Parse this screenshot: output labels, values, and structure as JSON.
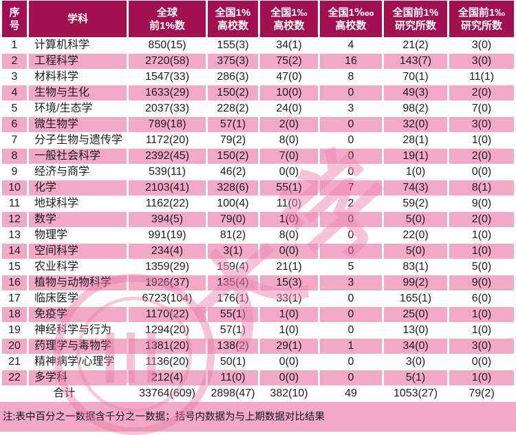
{
  "colors": {
    "header_bg": "#A21050",
    "header_text": "#FFFFFF",
    "row_pink": "#F2A9C6",
    "row_white": "#FFFFFF",
    "note_bg": "#F2A9C6",
    "body_text": "#1C1C1C",
    "watermark_pink": "#EB8AB2"
  },
  "header": {
    "columns": [
      {
        "id": "no",
        "lines": [
          "序",
          "号"
        ]
      },
      {
        "id": "subject",
        "lines": [
          "学科",
          ""
        ]
      },
      {
        "id": "global",
        "lines": [
          "全球",
          "前1%数"
        ]
      },
      {
        "id": "uni_1pct",
        "lines": [
          "全国1%",
          "高校数"
        ]
      },
      {
        "id": "uni_1pm",
        "lines": [
          "全国1‰",
          "高校数"
        ]
      },
      {
        "id": "uni_1ptm",
        "lines": [
          "全国1‱",
          "高校数"
        ]
      },
      {
        "id": "inst_1pct",
        "lines": [
          "全国前1%",
          "研究所数"
        ]
      },
      {
        "id": "inst_1pm",
        "lines": [
          "全国前1‰",
          "研究所数"
        ]
      }
    ]
  },
  "rows": [
    {
      "no": "1",
      "subject": "计算机科学",
      "values": [
        "850(15)",
        "155(3)",
        "34(1)",
        "4",
        "21(2)",
        "3(0)"
      ]
    },
    {
      "no": "2",
      "subject": "工程科学",
      "values": [
        "2720(58)",
        "375(3)",
        "75(2)",
        "16",
        "143(7)",
        "3(0)"
      ]
    },
    {
      "no": "3",
      "subject": "材料科学",
      "values": [
        "1547(33)",
        "286(3)",
        "47(0)",
        "8",
        "70(1)",
        "11(1)"
      ]
    },
    {
      "no": "4",
      "subject": "生物与生化",
      "values": [
        "1633(29)",
        "150(2)",
        "10(0)",
        "0",
        "49(3)",
        "2(0)"
      ]
    },
    {
      "no": "5",
      "subject": "环境/生态学",
      "values": [
        "2037(33)",
        "228(2)",
        "24(0)",
        "3",
        "98(2)",
        "7(0)"
      ]
    },
    {
      "no": "6",
      "subject": "微生物学",
      "values": [
        "789(18)",
        "57(1)",
        "2(0)",
        "0",
        "32(0)",
        "3(0)"
      ]
    },
    {
      "no": "7",
      "subject": "分子生物与遗传学",
      "values": [
        "1172(20)",
        "79(2)",
        "8(0)",
        "0",
        "28(1)",
        "1(0)"
      ]
    },
    {
      "no": "8",
      "subject": "一般社会科学",
      "values": [
        "2392(45)",
        "150(2)",
        "7(0)",
        "0",
        "19(1)",
        "2(0)"
      ]
    },
    {
      "no": "9",
      "subject": "经济与商学",
      "values": [
        "539(11)",
        "46(2)",
        "0(0)",
        "0",
        "1(0)",
        "0(0)"
      ]
    },
    {
      "no": "10",
      "subject": "化学",
      "values": [
        "2103(41)",
        "328(6)",
        "55(1)",
        "7",
        "74(3)",
        "8(1)"
      ]
    },
    {
      "no": "11",
      "subject": "地球科学",
      "values": [
        "1162(22)",
        "100(4)",
        "11(0)",
        "2",
        "59(2)",
        "9(0)"
      ]
    },
    {
      "no": "12",
      "subject": "数学",
      "values": [
        "394(5)",
        "79(0)",
        "1(0)",
        "0",
        "5(0)",
        "2(0)"
      ]
    },
    {
      "no": "13",
      "subject": "物理学",
      "values": [
        "991(19)",
        "81(2)",
        "8(0)",
        "0",
        "22(0)",
        "1(0)"
      ]
    },
    {
      "no": "14",
      "subject": "空间科学",
      "values": [
        "234(4)",
        "3(1)",
        "0(0)",
        "0",
        "5(0)",
        "1(0)"
      ]
    },
    {
      "no": "15",
      "subject": "农业科学",
      "values": [
        "1359(29)",
        "159(4)",
        "21(1)",
        "5",
        "83(1)",
        "5(0)"
      ]
    },
    {
      "no": "16",
      "subject": "植物与动物科学",
      "values": [
        "1926(37)",
        "135(4)",
        "15(3)",
        "3",
        "99(2)",
        "9(0)"
      ]
    },
    {
      "no": "17",
      "subject": "临床医学",
      "values": [
        "6723(104)",
        "176(1)",
        "33(1)",
        "0",
        "165(1)",
        "6(0)"
      ]
    },
    {
      "no": "18",
      "subject": "免疫学",
      "values": [
        "1170(22)",
        "55(1)",
        "1(0)",
        "0",
        "25(0)",
        "1(0)"
      ]
    },
    {
      "no": "19",
      "subject": "神经科学与行为",
      "values": [
        "1294(20)",
        "57(1)",
        "1(0)",
        "0",
        "13(0)",
        "1(0)"
      ]
    },
    {
      "no": "20",
      "subject": "药理学与毒物学",
      "values": [
        "1381(20)",
        "138(2)",
        "29(1)",
        "1",
        "34(0)",
        "3(0)"
      ]
    },
    {
      "no": "21",
      "subject": "精神病学/心理学",
      "values": [
        "1136(20)",
        "50(1)",
        "0(0)",
        "0",
        "3(0)",
        "0(0)"
      ]
    },
    {
      "no": "22",
      "subject": "多学科",
      "values": [
        "212(4)",
        "11(0)",
        "0(0)",
        "0",
        "5(1)",
        "1(0)"
      ]
    }
  ],
  "total": {
    "label": "合计",
    "values": [
      "33764(609)",
      "2898(47)",
      "382(10)",
      "49",
      "1053(27)",
      "79(2)"
    ]
  },
  "note": "注:表中百分之一数据含千分之一数据；括号内数据为与上期数据对比结果",
  "watermark": {
    "text": "大学"
  }
}
